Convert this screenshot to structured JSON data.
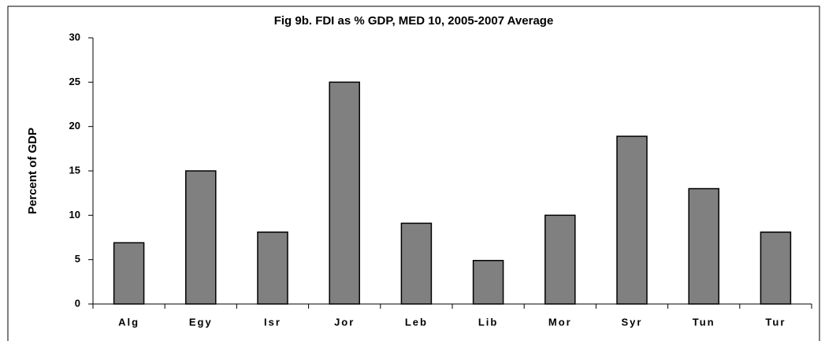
{
  "chart_data": {
    "type": "bar",
    "title": "Fig 9b. FDI as % GDP, MED 10, 2005-2007 Average",
    "y_label": "Percent of GDP",
    "categories": [
      "Alg",
      "Egy",
      "Isr",
      "Jor",
      "Leb",
      "Lib",
      "Mor",
      "Syr",
      "Tun",
      "Tur"
    ],
    "values": [
      6.9,
      15,
      8.1,
      25,
      9.1,
      4.9,
      10,
      18.9,
      13,
      8.1
    ],
    "color": "#808080",
    "ylim": [
      0,
      30
    ],
    "yticks": [
      0,
      5,
      10,
      15,
      20,
      25,
      30
    ],
    "grid": false
  }
}
